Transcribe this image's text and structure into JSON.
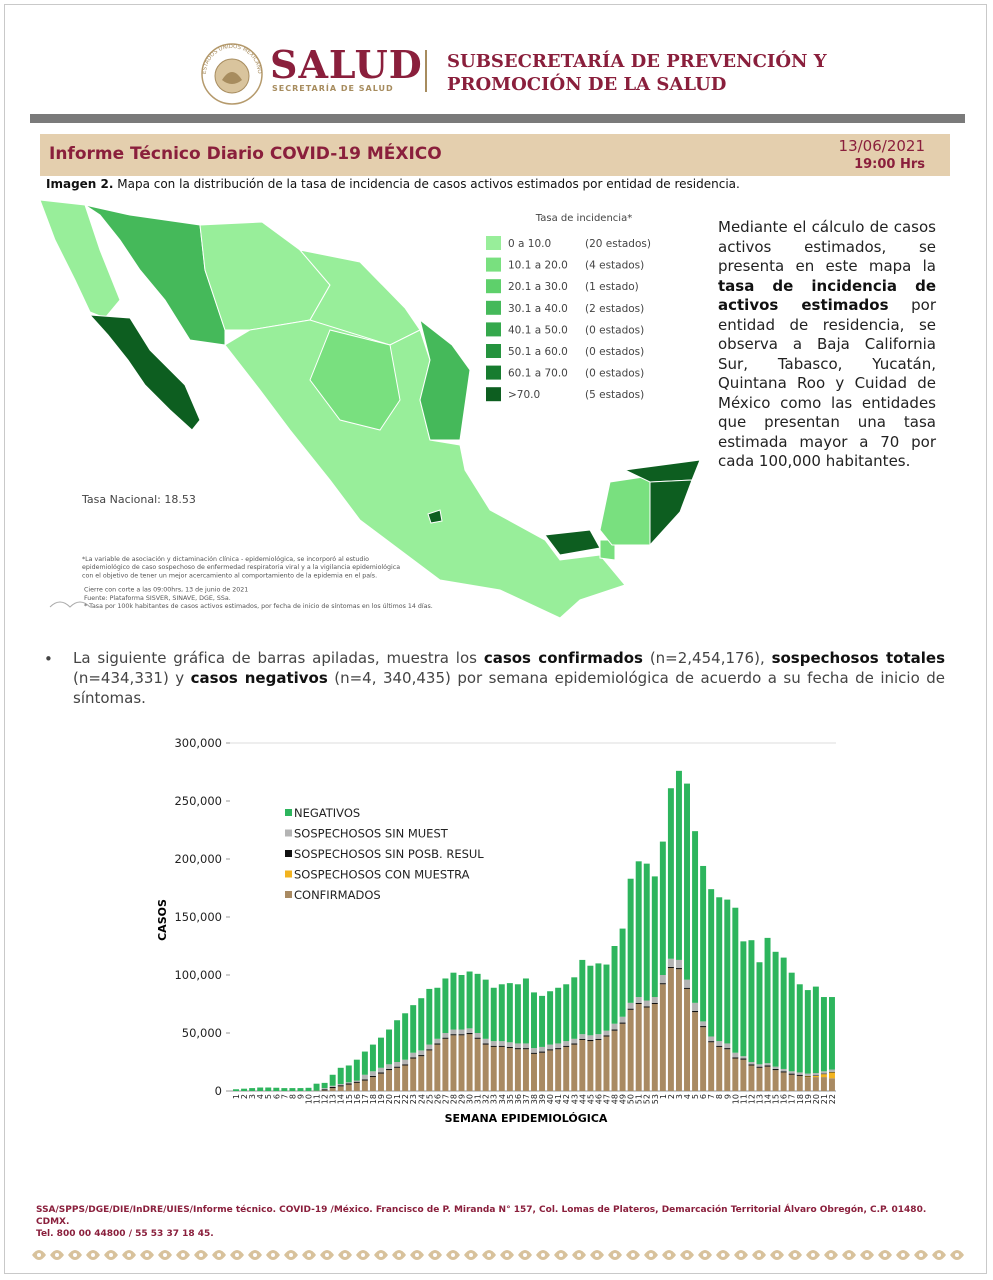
{
  "header": {
    "emblem_text": "ESTADOS UNIDOS MEXICANOS",
    "brand": "SALUD",
    "brand_sub": "SECRETARÍA DE SALUD",
    "subsecretaria": [
      "SUBSECRETARÍA DE PREVENCIÓN Y",
      "PROMOCIÓN DE LA SALUD"
    ]
  },
  "title": "Informe Técnico Diario COVID-19 MÉXICO",
  "date": "13/06/2021",
  "time": "19:00 Hrs",
  "caption": {
    "label": "Imagen 2.",
    "text": " Mapa con la distribución de la tasa de incidencia de casos activos estimados por entidad de residencia."
  },
  "map": {
    "legend_title": "Tasa de incidencia*",
    "legend": [
      {
        "range": "0   a  10.0",
        "count": "(20 estados)",
        "color": "#98ee9a"
      },
      {
        "range": "10.1 a  20.0",
        "count": "(4 estados)",
        "color": "#79e07f"
      },
      {
        "range": "20.1 a  30.0",
        "count": "(1 estado)",
        "color": "#5ed06b"
      },
      {
        "range": "30.1 a  40.0",
        "count": "(2 estados)",
        "color": "#45b95a"
      },
      {
        "range": "40.1 a  50.0",
        "count": "(0 estados)",
        "color": "#34a84c"
      },
      {
        "range": "50.1 a  60.0",
        "count": "(0 estados)",
        "color": "#25933e"
      },
      {
        "range": "60.1 a  70.0",
        "count": "(0 estados)",
        "color": "#177c2f"
      },
      {
        "range": ">70.0",
        "count": "(5 estados)",
        "color": "#0d5e20"
      }
    ],
    "national_rate": "Tasa Nacional: 18.53",
    "notes": [
      "*La variable de asociación y dictaminación clínica - epidemiológica, se incorporó al estudio",
      "epidemiológico de caso sospechoso de enfermedad respiratoria viral y a la vigilancia epidemiológica",
      "con el objetivo de tener un mejor acercamiento al comportamiento de la epidemia en el país.",
      "Cierre con corte a las 09:00hrs, 13 de junio de 2021",
      "Fuente: Plataforma SISVER, SINAVE, DGE, SSa.",
      "* Tasa por 100k habitantes de casos activos estimados, por fecha de inicio de síntomas en los últimos 14 días."
    ]
  },
  "map_text": [
    {
      "text": "Mediante el cálculo de casos activos estimados, se presenta en este mapa la ",
      "bold": false
    },
    {
      "text": "tasa de incidencia de activos estimados",
      "bold": true
    },
    {
      "text": " por entidad de residencia, se observa a Baja California Sur, Tabasco, Yucatán, Quintana Roo y Cuidad de México como las entidades que presentan una tasa estimada mayor a 70 por cada 100,000 habitantes.",
      "bold": false
    }
  ],
  "bullet": [
    {
      "text": "La siguiente gráfica de barras apiladas, muestra los ",
      "bold": false
    },
    {
      "text": "casos confirmados",
      "bold": true
    },
    {
      "text": " (n=2,454,176), ",
      "bold": false
    },
    {
      "text": "sospechosos totales",
      "bold": true
    },
    {
      "text": " (n=434,331) y ",
      "bold": false
    },
    {
      "text": "casos negativos",
      "bold": true
    },
    {
      "text": " (n=4, 340,435) por semana epidemiológica de acuerdo a su fecha de inicio de síntomas.",
      "bold": false
    }
  ],
  "chart_data": {
    "type": "stacked_bar",
    "y_label": "CASOS",
    "x_label": "SEMANA EPIDEMIOLÓGICA",
    "ylim": [
      0,
      300000
    ],
    "yticks": [
      0,
      {
        "value": 50000,
        "label": "50,000"
      },
      {
        "value": 100000,
        "label": "100,000"
      },
      {
        "value": 150000,
        "label": "150,000"
      },
      {
        "value": 200000,
        "label": "200,000"
      },
      {
        "value": 250000,
        "label": "250,000"
      },
      {
        "value": 300000,
        "label": "300,000"
      }
    ],
    "grid": false,
    "legend": "upper left",
    "categories": [
      "1",
      "2",
      "3",
      "4",
      "5",
      "6",
      "7",
      "8",
      "9",
      "10",
      "11",
      "12",
      "13",
      "14",
      "15",
      "16",
      "17",
      "18",
      "19",
      "20",
      "21",
      "22",
      "23",
      "24",
      "25",
      "26",
      "27",
      "28",
      "29",
      "30",
      "31",
      "32",
      "33",
      "34",
      "35",
      "36",
      "37",
      "38",
      "39",
      "40",
      "41",
      "42",
      "43",
      "44",
      "45",
      "46",
      "47",
      "48",
      "49",
      "50",
      "51",
      "52",
      "53",
      "1",
      "2",
      "3",
      "4",
      "5",
      "6",
      "7",
      "8",
      "9",
      "10",
      "11",
      "12",
      "13",
      "14",
      "15",
      "16",
      "17",
      "18",
      "19",
      "20",
      "21",
      "22"
    ],
    "series": [
      {
        "name": "NEGATIVOS",
        "color": "#2db55d",
        "values": [
          1500,
          2000,
          2500,
          3000,
          3000,
          2800,
          2500,
          2500,
          2500,
          2700,
          6000,
          4500,
          9500,
          14000,
          14500,
          18000,
          20000,
          23000,
          26000,
          30000,
          36000,
          40000,
          41000,
          45000,
          48000,
          44000,
          47000,
          49000,
          47000,
          49000,
          51000,
          51000,
          46000,
          49000,
          51000,
          51000,
          56000,
          48000,
          44000,
          46000,
          48000,
          49000,
          53000,
          64000,
          60000,
          61000,
          57000,
          67000,
          76000,
          107000,
          117000,
          118000,
          104000,
          115000,
          147000,
          163000,
          169000,
          148000,
          134000,
          127000,
          124000,
          124000,
          125000,
          99000,
          105000,
          88000,
          108000,
          99000,
          96000,
          85000,
          76000,
          72000,
          74500,
          64000,
          62500
        ]
      },
      {
        "name": "SOSPECHOSOS SIN MUEST",
        "color": "#b4b4b4",
        "values": [
          0,
          0,
          0,
          0,
          0,
          0,
          0,
          0,
          0,
          0,
          0,
          1000,
          1000,
          1000,
          1000,
          1000,
          4000,
          4000,
          4000,
          4000,
          4000,
          4000,
          4000,
          4000,
          4000,
          4000,
          4000,
          4000,
          4000,
          4000,
          4000,
          4000,
          4000,
          4000,
          4000,
          4000,
          4000,
          4000,
          4000,
          4000,
          4000,
          4000,
          4000,
          4000,
          4000,
          4000,
          4000,
          5000,
          5000,
          5000,
          5000,
          5000,
          5000,
          7000,
          7000,
          7000,
          7000,
          7000,
          4000,
          4000,
          4000,
          4000,
          4000,
          2000,
          2000,
          2000,
          2000,
          2000,
          2000,
          2000,
          2000,
          2000,
          2000,
          2000,
          2000
        ]
      },
      {
        "name": "SOSPECHOSOS SIN POSB. RESUL",
        "color": "#111111",
        "values": [
          0,
          0,
          0,
          0,
          0,
          0,
          0,
          0,
          0,
          0,
          0,
          1000,
          1000,
          1000,
          1000,
          1000,
          1000,
          1000,
          1000,
          1000,
          1000,
          1000,
          1000,
          1000,
          1000,
          1000,
          1000,
          1000,
          1000,
          1000,
          1000,
          1000,
          1000,
          1000,
          1000,
          1000,
          1000,
          1000,
          1000,
          1000,
          1000,
          1000,
          1000,
          1000,
          1000,
          1000,
          1000,
          1000,
          1000,
          1000,
          1000,
          1000,
          1000,
          1000,
          1000,
          1000,
          1000,
          1000,
          1000,
          1000,
          1000,
          1000,
          1000,
          1000,
          1000,
          1000,
          1000,
          1000,
          1000,
          1000,
          1000,
          500,
          500,
          500,
          500
        ]
      },
      {
        "name": "SOSPECHOSOS CON MUESTRA",
        "color": "#f2b31f",
        "values": [
          0,
          0,
          0,
          0,
          0,
          0,
          0,
          0,
          0,
          0,
          0,
          0,
          0,
          0,
          0,
          0,
          0,
          0,
          0,
          0,
          0,
          0,
          0,
          0,
          0,
          0,
          0,
          0,
          0,
          0,
          0,
          0,
          0,
          0,
          0,
          0,
          0,
          0,
          0,
          0,
          0,
          0,
          0,
          0,
          0,
          0,
          0,
          0,
          0,
          0,
          0,
          0,
          0,
          0,
          0,
          0,
          0,
          0,
          0,
          0,
          0,
          0,
          0,
          0,
          0,
          0,
          0,
          0,
          0,
          0,
          0,
          500,
          1000,
          2500,
          5000
        ]
      },
      {
        "name": "CONFIRMADOS",
        "color": "#a98a62",
        "values": [
          0,
          0,
          0,
          0,
          0,
          0,
          0,
          0,
          10,
          50,
          300,
          500,
          2500,
          4000,
          5500,
          7000,
          9000,
          12000,
          15000,
          18000,
          20000,
          22000,
          28000,
          30000,
          35000,
          40000,
          45000,
          48000,
          48000,
          49000,
          45000,
          40000,
          38000,
          38000,
          37000,
          36000,
          36000,
          32000,
          33000,
          35000,
          36000,
          38000,
          40000,
          44000,
          43000,
          44000,
          47000,
          52000,
          58000,
          70000,
          75000,
          72000,
          75000,
          92000,
          106000,
          105000,
          88000,
          68000,
          55000,
          42000,
          38000,
          36000,
          28000,
          27000,
          22000,
          20000,
          21000,
          18000,
          16000,
          14000,
          13000,
          12000,
          12000,
          12000,
          11000
        ]
      }
    ]
  },
  "footer": [
    "SSA/SPPS/DGE/DIE/InDRE/UIES/Informe técnico. COVID-19 /México. Francisco de P. Miranda N° 157, Col. Lomas de Plateros, Demarcación Territorial Álvaro Obregón, C.P. 01480. CDMX.",
    "Tel. 800 00 44800 / 55 53 37 18 45."
  ]
}
